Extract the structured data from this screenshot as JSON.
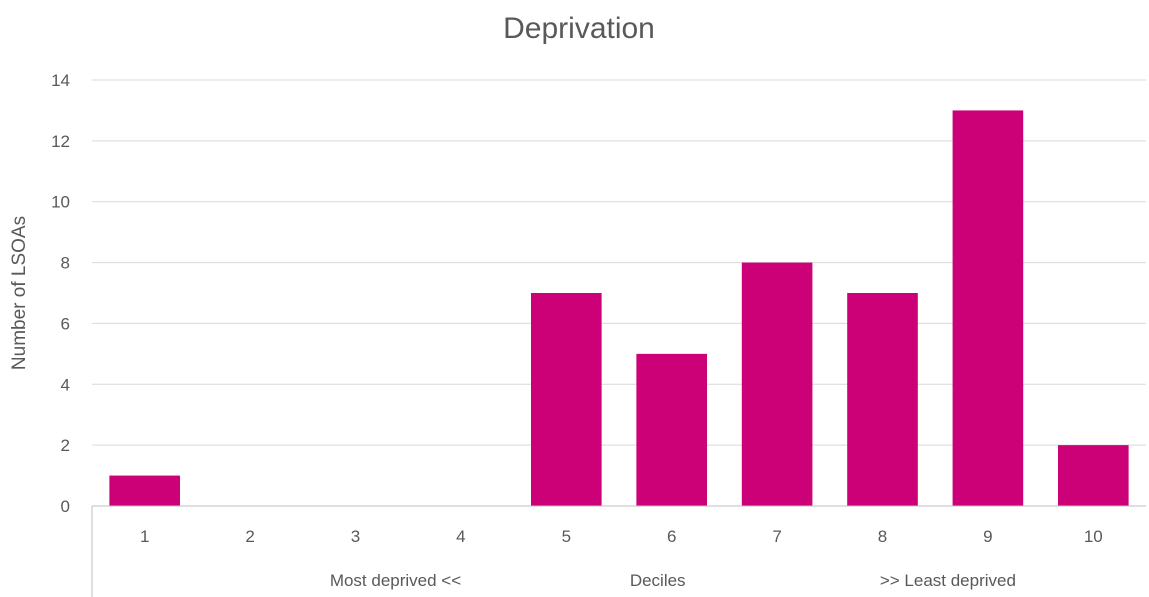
{
  "chart_data": {
    "type": "bar",
    "title": "Deprivation",
    "ylabel": "Number of LSOAs",
    "categories": [
      "1",
      "2",
      "3",
      "4",
      "5",
      "6",
      "7",
      "8",
      "9",
      "10"
    ],
    "values": [
      1,
      0,
      0,
      0,
      7,
      5,
      8,
      7,
      13,
      2
    ],
    "ylim": [
      0,
      14
    ],
    "yticks": [
      0,
      2,
      4,
      6,
      8,
      10,
      12,
      14
    ],
    "group_labels": [
      "Most deprived <<",
      "Deciles",
      ">> Least deprived"
    ],
    "grid": true,
    "legend": "none",
    "colors": {
      "bar": "#cc0077",
      "text": "#595959",
      "grid": "#d9d9d9",
      "axis": "#bfbfbf"
    }
  }
}
